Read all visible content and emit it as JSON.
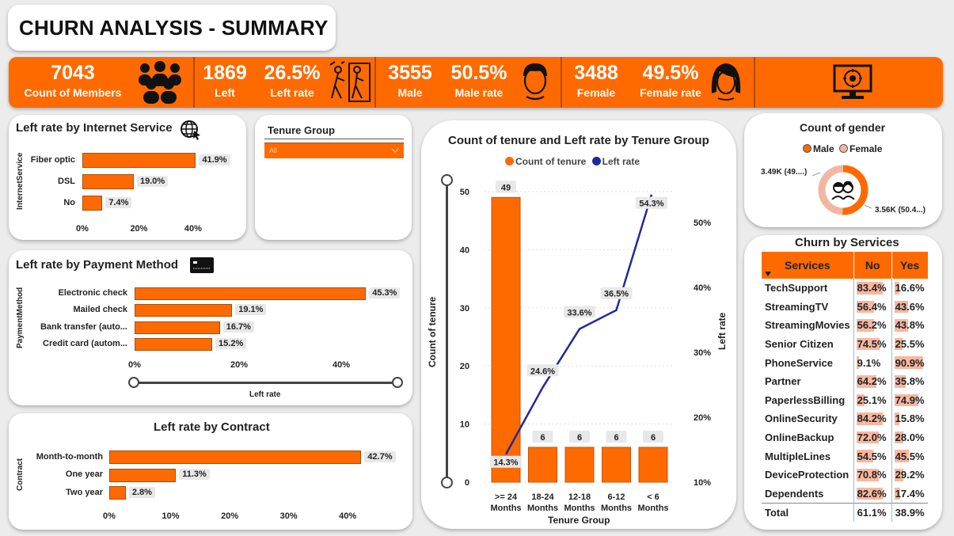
{
  "page_title": "CHURN ANALYSIS - SUMMARY",
  "kpis": {
    "members_value": "7043",
    "members_label": "Count of Members",
    "left_value": "1869",
    "left_label": "Left",
    "left_rate_value": "26.5%",
    "left_rate_label": "Left rate",
    "male_value": "3555",
    "male_label": "Male",
    "male_rate_value": "50.5%",
    "male_rate_label": "Male rate",
    "female_value": "3488",
    "female_label": "Female",
    "female_rate_value": "49.5%",
    "female_rate_label": "Female rate"
  },
  "icons": [
    "group-icon",
    "people-leaving-icon",
    "male-avatar-icon",
    "female-avatar-icon",
    "monitor-brain-icon",
    "globe-cursor-icon",
    "credit-card-icon",
    "couple-icon"
  ],
  "colors": {
    "accent": "#ff6a00",
    "line": "#1f2a9c",
    "donut_light": "#f4b6a4",
    "table_bar": "#f7b7a0"
  },
  "slicer": {
    "title": "Tenure Group",
    "value": "All"
  },
  "chart_data": [
    {
      "type": "bar",
      "orientation": "horizontal",
      "title": "Left rate by Internet Service",
      "ylabel": "InternetService",
      "categories": [
        "Fiber optic",
        "DSL",
        "No"
      ],
      "values": [
        41.9,
        19.0,
        7.4
      ],
      "value_labels": [
        "41.9%",
        "19.0%",
        "7.4%"
      ],
      "xticks": [
        "0%",
        "20%",
        "40%"
      ],
      "xlim": [
        0,
        45
      ]
    },
    {
      "type": "bar",
      "orientation": "horizontal",
      "title": "Left rate by Payment Method",
      "ylabel": "PaymentMethod",
      "xlabel": "Left rate",
      "categories": [
        "Electronic check",
        "Mailed check",
        "Bank transfer (auto...",
        "Credit card (autom..."
      ],
      "values": [
        45.3,
        19.1,
        16.7,
        15.2
      ],
      "value_labels": [
        "45.3%",
        "19.1%",
        "16.7%",
        "15.2%"
      ],
      "xticks": [
        "0%",
        "20%",
        "40%"
      ],
      "xlim": [
        0,
        51
      ]
    },
    {
      "type": "bar",
      "orientation": "horizontal",
      "title": "Left rate by Contract",
      "ylabel": "Contract",
      "categories": [
        "Month-to-month",
        "One year",
        "Two year"
      ],
      "values": [
        42.7,
        11.3,
        2.8
      ],
      "value_labels": [
        "42.7%",
        "11.3%",
        "2.8%"
      ],
      "xticks": [
        "0%",
        "10%",
        "20%",
        "30%",
        "40%"
      ],
      "xlim": [
        0,
        44
      ]
    },
    {
      "type": "bar+line",
      "title": "Count of tenure and Left rate by Tenure Group",
      "legend": [
        "Count of tenure",
        "Left rate"
      ],
      "legend_position": "top-center",
      "xlabel": "Tenure Group",
      "ylabel": "Count of tenure",
      "y2label": "Left rate",
      "categories": [
        ">= 24 Months",
        "18-24 Months",
        "12-18 Months",
        "6-12 Months",
        "< 6 Months"
      ],
      "category_line1": [
        ">= 24",
        "18-24",
        "12-18",
        "6-12",
        "< 6"
      ],
      "category_line2": [
        "Months",
        "Months",
        "Months",
        "Months",
        "Months"
      ],
      "bar_values": [
        49,
        6,
        6,
        6,
        6
      ],
      "bar_labels": [
        "49",
        "6",
        "6",
        "6",
        "6"
      ],
      "line_values": [
        14.3,
        24.6,
        33.6,
        36.5,
        54.3
      ],
      "line_labels": [
        "14.3%",
        "24.6%",
        "33.6%",
        "36.5%",
        "54.3%"
      ],
      "ylim": [
        0,
        50
      ],
      "y2lim": [
        10,
        55
      ],
      "yticks": [
        "0",
        "10",
        "20",
        "30",
        "40",
        "50"
      ],
      "y2ticks": [
        "10%",
        "20%",
        "30%",
        "40%",
        "50%"
      ]
    },
    {
      "type": "pie",
      "title": "Count of gender",
      "legend": [
        "Male",
        "Female"
      ],
      "values": [
        3555,
        3488
      ],
      "value_labels": [
        "3.56K (50.4...)",
        "3.49K (49....)"
      ]
    }
  ],
  "services_table": {
    "title": "Churn by Services",
    "columns": [
      "Services",
      "No",
      "Yes"
    ],
    "rows": [
      [
        "TechSupport",
        "83.4%",
        "16.6%"
      ],
      [
        "StreamingTV",
        "56.4%",
        "43.6%"
      ],
      [
        "StreamingMovies",
        "56.2%",
        "43.8%"
      ],
      [
        "Senior Citizen",
        "74.5%",
        "25.5%"
      ],
      [
        "PhoneService",
        "9.1%",
        "90.9%"
      ],
      [
        "Partner",
        "64.2%",
        "35.8%"
      ],
      [
        "PaperlessBilling",
        "25.1%",
        "74.9%"
      ],
      [
        "OnlineSecurity",
        "84.2%",
        "15.8%"
      ],
      [
        "OnlineBackup",
        "72.0%",
        "28.0%"
      ],
      [
        "MultipleLines",
        "54.5%",
        "45.5%"
      ],
      [
        "DeviceProtection",
        "70.8%",
        "29.2%"
      ],
      [
        "Dependents",
        "82.6%",
        "17.4%"
      ]
    ],
    "total": [
      "Total",
      "61.1%",
      "38.9%"
    ]
  }
}
